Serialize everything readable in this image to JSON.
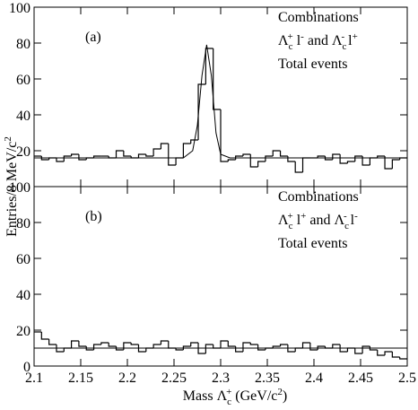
{
  "chart_data": [
    {
      "type": "histogram",
      "panel_label": "(a)",
      "notes": [
        [
          {
            "text": "Combinations"
          }
        ],
        [
          {
            "text": "Λ",
            "sub": "c",
            "sup": "+"
          },
          {
            "text": " l",
            "sup": "-"
          },
          {
            "text": " and Λ",
            "sub": "c",
            "sup": "-"
          },
          {
            "text": " l",
            "sup": "+"
          }
        ],
        [
          {
            "text": "Total events"
          }
        ]
      ],
      "y_label": [
        {
          "text": "Entries/8 MeV/c",
          "sup": "2"
        }
      ],
      "bins": [
        2.1,
        2.108,
        2.116,
        2.124,
        2.132,
        2.14,
        2.148,
        2.156,
        2.164,
        2.172,
        2.18,
        2.188,
        2.196,
        2.204,
        2.212,
        2.22,
        2.228,
        2.236,
        2.244,
        2.252,
        2.26,
        2.268,
        2.276,
        2.284,
        2.292,
        2.3,
        2.308,
        2.316,
        2.324,
        2.332,
        2.34,
        2.348,
        2.356,
        2.364,
        2.372,
        2.38,
        2.388,
        2.396,
        2.404,
        2.412,
        2.42,
        2.428,
        2.436,
        2.444,
        2.452,
        2.46,
        2.468,
        2.476,
        2.484,
        2.492,
        2.5
      ],
      "values": [
        17,
        15,
        16,
        14,
        17,
        18,
        15,
        16,
        17,
        17,
        16,
        20,
        17,
        16,
        18,
        17,
        21,
        24,
        12,
        16,
        24,
        26,
        57,
        77,
        43,
        14,
        15,
        17,
        18,
        11,
        14,
        17,
        20,
        17,
        14,
        8,
        16,
        16,
        17,
        15,
        18,
        13,
        14,
        17,
        12,
        16,
        17,
        10,
        15,
        16
      ],
      "fit": {
        "x": [
          2.1,
          2.26,
          2.27,
          2.275,
          2.28,
          2.285,
          2.29,
          2.295,
          2.3,
          2.31,
          2.5
        ],
        "values": [
          16,
          16,
          20,
          34,
          62,
          79,
          62,
          30,
          18,
          16,
          16
        ]
      },
      "color": "#000000",
      "xlim": [
        2.1,
        2.5
      ],
      "xticks": [
        2.1,
        2.15,
        2.2,
        2.25,
        2.3,
        2.35,
        2.4,
        2.45,
        2.5
      ],
      "ylim": [
        0,
        100
      ],
      "yticks": [
        20,
        40,
        60,
        80,
        100
      ]
    },
    {
      "type": "histogram",
      "panel_label": "(b)",
      "notes": [
        [
          {
            "text": "Combinations"
          }
        ],
        [
          {
            "text": "Λ",
            "sub": "c",
            "sup": "+"
          },
          {
            "text": " l",
            "sup": "+"
          },
          {
            "text": " and Λ",
            "sub": "c",
            "sup": "-"
          },
          {
            "text": " l",
            "sup": "-"
          }
        ],
        [
          {
            "text": "Total events"
          }
        ]
      ],
      "x_label": [
        {
          "text": "Mass Λ",
          "sub": "c",
          "sup": "+"
        },
        {
          "text": " (GeV/c",
          "sup": "2"
        },
        {
          "text": ")"
        }
      ],
      "bins": [
        2.1,
        2.108,
        2.116,
        2.124,
        2.132,
        2.14,
        2.148,
        2.156,
        2.164,
        2.172,
        2.18,
        2.188,
        2.196,
        2.204,
        2.212,
        2.22,
        2.228,
        2.236,
        2.244,
        2.252,
        2.26,
        2.268,
        2.276,
        2.284,
        2.292,
        2.3,
        2.308,
        2.316,
        2.324,
        2.332,
        2.34,
        2.348,
        2.356,
        2.364,
        2.372,
        2.38,
        2.388,
        2.396,
        2.404,
        2.412,
        2.42,
        2.428,
        2.436,
        2.444,
        2.452,
        2.46,
        2.468,
        2.476,
        2.484,
        2.492,
        2.5
      ],
      "values": [
        19,
        15,
        12,
        8,
        10,
        14,
        11,
        9,
        12,
        13,
        11,
        9,
        13,
        12,
        8,
        10,
        12,
        14,
        10,
        9,
        11,
        13,
        7,
        12,
        10,
        14,
        11,
        8,
        13,
        12,
        9,
        10,
        11,
        12,
        8,
        10,
        13,
        9,
        11,
        10,
        12,
        8,
        10,
        7,
        11,
        9,
        6,
        8,
        5,
        4
      ],
      "fit": {
        "x": [
          2.1,
          2.5
        ],
        "values": [
          10,
          10
        ]
      },
      "color": "#000000",
      "xlim": [
        2.1,
        2.5
      ],
      "xticks": [
        2.1,
        2.15,
        2.2,
        2.25,
        2.3,
        2.35,
        2.4,
        2.45,
        2.5
      ],
      "ylim": [
        0,
        100
      ],
      "yticks": [
        0,
        20,
        40,
        60,
        80,
        100
      ]
    }
  ]
}
